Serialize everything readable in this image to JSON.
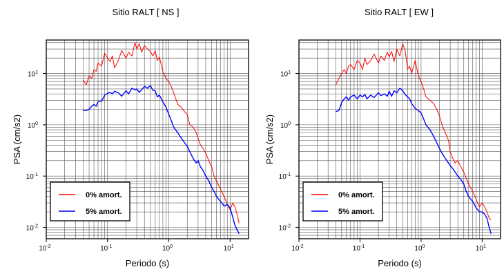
{
  "chart_data": [
    {
      "type": "line",
      "title": "Sitio RALT [ NS ]",
      "xlabel": "Periodo (s)",
      "ylabel": "PSA (cm/s2)",
      "xscale": "log",
      "yscale": "log",
      "xlim": [
        0.01,
        20
      ],
      "ylim": [
        0.006,
        45
      ],
      "grid": true,
      "legend_position": "bottom-left",
      "x_ticks": [
        {
          "base": "10",
          "exp": "-2"
        },
        {
          "base": "10",
          "exp": "-1"
        },
        {
          "base": "10",
          "exp": "0"
        },
        {
          "base": "10",
          "exp": "1"
        }
      ],
      "y_ticks": [
        {
          "base": "10",
          "exp": "-2"
        },
        {
          "base": "10",
          "exp": "-1"
        },
        {
          "base": "10",
          "exp": "0"
        },
        {
          "base": "10",
          "exp": "1"
        }
      ],
      "series": [
        {
          "name": "0% amort.",
          "color": "#ff0000",
          "x": [
            0.04,
            0.045,
            0.05,
            0.055,
            0.06,
            0.065,
            0.07,
            0.08,
            0.09,
            0.1,
            0.11,
            0.12,
            0.13,
            0.15,
            0.17,
            0.2,
            0.22,
            0.25,
            0.28,
            0.3,
            0.33,
            0.36,
            0.4,
            0.45,
            0.5,
            0.55,
            0.6,
            0.65,
            0.7,
            0.8,
            0.9,
            1.0,
            1.1,
            1.2,
            1.4,
            1.6,
            1.8,
            2.0,
            2.2,
            2.5,
            2.8,
            3.0,
            3.3,
            3.6,
            4.0,
            4.5,
            5.0,
            5.5,
            6.0,
            7.0,
            8.0,
            9.0,
            10.0,
            11.0,
            12.0,
            13.0,
            14.0
          ],
          "y": [
            7.5,
            6.0,
            9.0,
            8.0,
            12.0,
            11.0,
            16.0,
            14.0,
            25.0,
            20.0,
            17.0,
            22.0,
            13.0,
            18.0,
            28.0,
            20.0,
            26.0,
            22.0,
            40.0,
            30.0,
            38.0,
            26.0,
            35.0,
            30.0,
            27.0,
            22.0,
            28.0,
            18.0,
            21.0,
            11.0,
            8.0,
            7.0,
            5.5,
            4.2,
            2.5,
            2.2,
            1.8,
            1.6,
            1.0,
            0.9,
            0.7,
            0.55,
            0.4,
            0.35,
            0.28,
            0.2,
            0.15,
            0.1,
            0.08,
            0.055,
            0.04,
            0.028,
            0.022,
            0.03,
            0.025,
            0.018,
            0.012
          ]
        },
        {
          "name": "5% amort.",
          "color": "#0000ff",
          "x": [
            0.04,
            0.045,
            0.05,
            0.055,
            0.06,
            0.065,
            0.07,
            0.08,
            0.09,
            0.1,
            0.11,
            0.12,
            0.13,
            0.15,
            0.17,
            0.2,
            0.22,
            0.25,
            0.28,
            0.3,
            0.33,
            0.36,
            0.4,
            0.45,
            0.5,
            0.55,
            0.6,
            0.65,
            0.7,
            0.8,
            0.9,
            1.0,
            1.1,
            1.2,
            1.4,
            1.6,
            1.8,
            2.0,
            2.2,
            2.5,
            2.8,
            3.0,
            3.3,
            3.6,
            4.0,
            4.5,
            5.0,
            5.5,
            6.0,
            7.0,
            8.0,
            9.0,
            10.0,
            11.0,
            12.0,
            13.0,
            14.0
          ],
          "y": [
            1.9,
            1.9,
            2.0,
            2.3,
            2.5,
            2.3,
            2.8,
            2.9,
            3.8,
            4.1,
            4.3,
            4.0,
            4.5,
            4.2,
            3.6,
            4.6,
            4.0,
            5.2,
            4.8,
            5.0,
            4.3,
            4.8,
            5.6,
            5.2,
            5.8,
            4.7,
            4.6,
            3.5,
            3.8,
            2.8,
            2.2,
            1.6,
            1.2,
            0.9,
            0.7,
            0.55,
            0.45,
            0.38,
            0.3,
            0.22,
            0.18,
            0.2,
            0.15,
            0.13,
            0.1,
            0.08,
            0.06,
            0.05,
            0.04,
            0.032,
            0.026,
            0.028,
            0.024,
            0.016,
            0.011,
            0.009,
            0.0075
          ]
        }
      ]
    },
    {
      "type": "line",
      "title": "Sitio RALT [ EW ]",
      "xlabel": "Periodo (s)",
      "ylabel": "PSA (cm/s2)",
      "xscale": "log",
      "yscale": "log",
      "xlim": [
        0.01,
        20
      ],
      "ylim": [
        0.006,
        45
      ],
      "grid": true,
      "legend_position": "bottom-left",
      "x_ticks": [
        {
          "base": "10",
          "exp": "-2"
        },
        {
          "base": "10",
          "exp": "-1"
        },
        {
          "base": "10",
          "exp": "0"
        },
        {
          "base": "10",
          "exp": "1"
        }
      ],
      "y_ticks": [
        {
          "base": "10",
          "exp": "-2"
        },
        {
          "base": "10",
          "exp": "-1"
        },
        {
          "base": "10",
          "exp": "0"
        },
        {
          "base": "10",
          "exp": "1"
        }
      ],
      "series": [
        {
          "name": "0% amort.",
          "color": "#ff0000",
          "x": [
            0.04,
            0.045,
            0.05,
            0.055,
            0.06,
            0.065,
            0.07,
            0.08,
            0.09,
            0.1,
            0.11,
            0.12,
            0.13,
            0.15,
            0.17,
            0.2,
            0.22,
            0.25,
            0.28,
            0.3,
            0.33,
            0.36,
            0.4,
            0.45,
            0.5,
            0.55,
            0.6,
            0.65,
            0.7,
            0.8,
            0.9,
            1.0,
            1.1,
            1.2,
            1.4,
            1.6,
            1.8,
            2.0,
            2.2,
            2.5,
            2.8,
            3.0,
            3.3,
            3.6,
            4.0,
            4.5,
            5.0,
            5.5,
            6.0,
            7.0,
            8.0,
            9.0,
            10.0,
            11.0,
            12.0,
            13.0,
            14.0
          ],
          "y": [
            6.0,
            8.0,
            10.0,
            12.0,
            10.0,
            14.0,
            15.0,
            12.0,
            18.0,
            16.0,
            12.0,
            20.0,
            15.0,
            18.0,
            24.0,
            16.0,
            22.0,
            18.0,
            26.0,
            21.0,
            27.0,
            17.0,
            30.0,
            22.0,
            38.0,
            28.0,
            12.0,
            14.0,
            10.0,
            18.0,
            9.0,
            7.0,
            5.0,
            3.5,
            3.0,
            2.6,
            2.0,
            1.5,
            1.0,
            0.7,
            0.5,
            0.3,
            0.22,
            0.18,
            0.2,
            0.15,
            0.12,
            0.09,
            0.07,
            0.05,
            0.035,
            0.025,
            0.03,
            0.025,
            0.02,
            0.015,
            0.014
          ]
        },
        {
          "name": "5% amort.",
          "color": "#0000ff",
          "x": [
            0.04,
            0.045,
            0.05,
            0.055,
            0.06,
            0.065,
            0.07,
            0.08,
            0.09,
            0.1,
            0.11,
            0.12,
            0.13,
            0.15,
            0.17,
            0.2,
            0.22,
            0.25,
            0.28,
            0.3,
            0.33,
            0.36,
            0.4,
            0.45,
            0.5,
            0.55,
            0.6,
            0.65,
            0.7,
            0.8,
            0.9,
            1.0,
            1.1,
            1.2,
            1.4,
            1.6,
            1.8,
            2.0,
            2.2,
            2.5,
            2.8,
            3.0,
            3.3,
            3.6,
            4.0,
            4.5,
            5.0,
            5.5,
            6.0,
            7.0,
            8.0,
            9.0,
            10.0,
            11.0,
            12.0,
            13.0,
            14.0
          ],
          "y": [
            1.8,
            1.9,
            2.7,
            3.2,
            3.5,
            3.0,
            3.5,
            3.8,
            3.2,
            3.8,
            3.5,
            3.9,
            3.2,
            3.8,
            3.4,
            4.2,
            3.7,
            4.0,
            3.6,
            4.5,
            3.6,
            4.6,
            4.2,
            5.2,
            4.6,
            3.9,
            3.5,
            3.2,
            2.6,
            2.1,
            1.9,
            1.7,
            1.3,
            1.0,
            0.8,
            0.6,
            0.45,
            0.35,
            0.28,
            0.22,
            0.18,
            0.16,
            0.14,
            0.12,
            0.1,
            0.085,
            0.07,
            0.05,
            0.04,
            0.032,
            0.024,
            0.02,
            0.02,
            0.018,
            0.015,
            0.01,
            0.0075
          ]
        }
      ]
    }
  ]
}
